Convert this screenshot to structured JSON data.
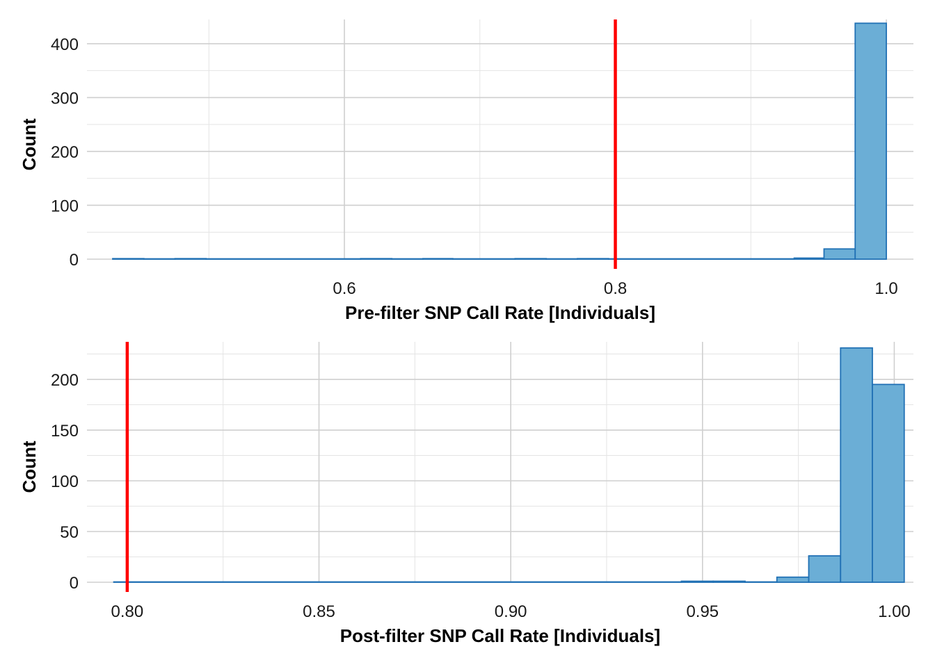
{
  "colors": {
    "bar_fill": "#6baed6",
    "bar_stroke": "#2171b5",
    "threshold_line": "#ff0000"
  },
  "chart_data": [
    {
      "type": "bar",
      "subtype": "histogram",
      "xlabel": "Pre-filter SNP Call Rate [Individuals]",
      "ylabel": "Count",
      "xlim": [
        0.41,
        1.02
      ],
      "ylim": [
        0,
        445
      ],
      "xticks": [
        0.6,
        0.8,
        1.0
      ],
      "xtick_labels": [
        "0.6",
        "0.8",
        "1.0"
      ],
      "yticks": [
        0,
        100,
        200,
        300,
        400
      ],
      "ytick_labels": [
        "0",
        "100",
        "200",
        "300",
        "400"
      ],
      "grid": true,
      "threshold": 0.8,
      "bin_width": 0.0228,
      "bins": [
        {
          "x0": 0.429,
          "x1": 0.452,
          "count": 1
        },
        {
          "x0": 0.452,
          "x1": 0.475,
          "count": 0
        },
        {
          "x0": 0.475,
          "x1": 0.498,
          "count": 1
        },
        {
          "x0": 0.498,
          "x1": 0.612,
          "count": 0
        },
        {
          "x0": 0.612,
          "x1": 0.635,
          "count": 1
        },
        {
          "x0": 0.635,
          "x1": 0.658,
          "count": 0
        },
        {
          "x0": 0.658,
          "x1": 0.68,
          "count": 1
        },
        {
          "x0": 0.68,
          "x1": 0.726,
          "count": 0
        },
        {
          "x0": 0.726,
          "x1": 0.749,
          "count": 1
        },
        {
          "x0": 0.749,
          "x1": 0.772,
          "count": 0
        },
        {
          "x0": 0.772,
          "x1": 0.795,
          "count": 1
        },
        {
          "x0": 0.795,
          "x1": 0.932,
          "count": 0
        },
        {
          "x0": 0.932,
          "x1": 0.954,
          "count": 2
        },
        {
          "x0": 0.954,
          "x1": 0.977,
          "count": 19
        },
        {
          "x0": 0.977,
          "x1": 1.0,
          "count": 438
        }
      ]
    },
    {
      "type": "bar",
      "subtype": "histogram",
      "xlabel": "Post-filter SNP Call Rate [Individuals]",
      "ylabel": "Count",
      "xlim": [
        0.7895,
        1.005
      ],
      "ylim": [
        0,
        237
      ],
      "xticks": [
        0.8,
        0.85,
        0.9,
        0.95,
        1.0
      ],
      "xtick_labels": [
        "0.80",
        "0.85",
        "0.90",
        "0.95",
        "1.00"
      ],
      "yticks": [
        0,
        50,
        100,
        150,
        200
      ],
      "ytick_labels": [
        "0",
        "50",
        "100",
        "150",
        "200"
      ],
      "grid": true,
      "threshold": 0.8,
      "bin_width": 0.0083,
      "bins": [
        {
          "x0": 0.7965,
          "x1": 0.9445,
          "count": 0
        },
        {
          "x0": 0.9445,
          "x1": 0.9528,
          "count": 1
        },
        {
          "x0": 0.9528,
          "x1": 0.9611,
          "count": 1
        },
        {
          "x0": 0.9611,
          "x1": 0.9694,
          "count": 0
        },
        {
          "x0": 0.9694,
          "x1": 0.9777,
          "count": 5
        },
        {
          "x0": 0.9777,
          "x1": 0.986,
          "count": 26
        },
        {
          "x0": 0.986,
          "x1": 0.9943,
          "count": 231
        },
        {
          "x0": 0.9943,
          "x1": 1.0026,
          "count": 195
        }
      ]
    }
  ]
}
